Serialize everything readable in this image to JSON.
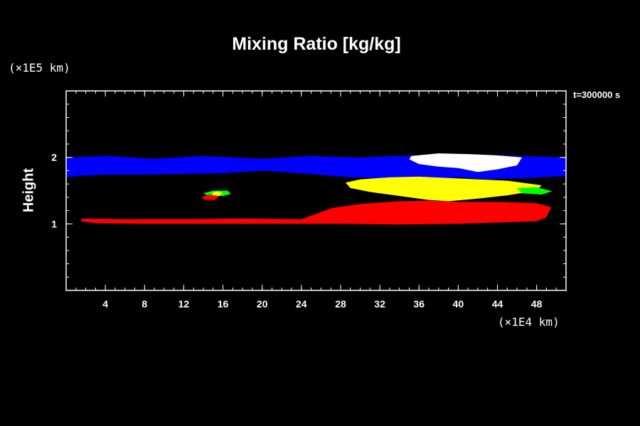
{
  "chart_data": {
    "type": "heatmap",
    "title": "Mixing Ratio [kg/kg]",
    "ylabel": "Height",
    "y_unit": "(×1E5 km)",
    "x_unit": "(×1E4 km)",
    "timestamp": "t=300000 s",
    "xlim": [
      0,
      51
    ],
    "ylim": [
      0,
      3
    ],
    "x_ticks": [
      "4",
      "8",
      "12",
      "16",
      "20",
      "24",
      "28",
      "32",
      "36",
      "40",
      "44",
      "48"
    ],
    "y_ticks": [
      "1",
      "2"
    ],
    "x_tick_values": [
      4,
      8,
      12,
      16,
      20,
      24,
      28,
      32,
      36,
      40,
      44,
      48
    ],
    "y_tick_values": [
      1,
      2
    ],
    "x_minor_step": 1,
    "y_minor_step": 0.2,
    "background": "#000000",
    "regions": [
      {
        "color": "#0000ff",
        "points": [
          [
            0,
            2.0
          ],
          [
            4,
            2.02
          ],
          [
            9,
            1.98
          ],
          [
            14,
            2.02
          ],
          [
            20,
            1.98
          ],
          [
            25,
            2.02
          ],
          [
            30,
            2.0
          ],
          [
            35,
            2.03
          ],
          [
            40,
            2.05
          ],
          [
            45,
            2.03
          ],
          [
            51,
            2.0
          ],
          [
            51,
            1.72
          ],
          [
            47,
            1.69
          ],
          [
            43,
            1.67
          ],
          [
            40,
            1.7
          ],
          [
            36,
            1.64
          ],
          [
            32,
            1.68
          ],
          [
            28,
            1.71
          ],
          [
            24,
            1.76
          ],
          [
            20,
            1.8
          ],
          [
            16,
            1.76
          ],
          [
            12,
            1.75
          ],
          [
            8,
            1.74
          ],
          [
            4,
            1.74
          ],
          [
            1,
            1.72
          ],
          [
            0,
            1.7
          ]
        ]
      },
      {
        "color": "#ffffff",
        "points": [
          [
            35.2,
            2.02
          ],
          [
            38,
            2.06
          ],
          [
            41,
            2.05
          ],
          [
            44,
            2.03
          ],
          [
            46.5,
            2.0
          ],
          [
            46,
            1.88
          ],
          [
            44,
            1.82
          ],
          [
            42,
            1.78
          ],
          [
            40,
            1.84
          ],
          [
            38,
            1.86
          ],
          [
            36,
            1.9
          ],
          [
            35,
            1.97
          ]
        ]
      },
      {
        "color": "#ffff00",
        "points": [
          [
            28.5,
            1.62
          ],
          [
            30,
            1.67
          ],
          [
            33,
            1.7
          ],
          [
            36,
            1.71
          ],
          [
            39,
            1.69
          ],
          [
            42,
            1.67
          ],
          [
            45,
            1.65
          ],
          [
            48.5,
            1.58
          ],
          [
            48,
            1.5
          ],
          [
            45,
            1.43
          ],
          [
            42,
            1.38
          ],
          [
            39,
            1.34
          ],
          [
            37,
            1.36
          ],
          [
            34,
            1.42
          ],
          [
            31,
            1.48
          ],
          [
            29,
            1.54
          ]
        ]
      },
      {
        "color": "#00ff00",
        "points": [
          [
            46,
            1.54
          ],
          [
            48,
            1.55
          ],
          [
            49.6,
            1.49
          ],
          [
            48.5,
            1.44
          ],
          [
            46.5,
            1.46
          ]
        ]
      },
      {
        "color": "#ff0000",
        "points": [
          [
            1.5,
            1.04
          ],
          [
            1.6,
            1.08
          ],
          [
            6,
            1.07
          ],
          [
            12,
            1.07
          ],
          [
            18,
            1.08
          ],
          [
            24,
            1.07
          ],
          [
            27.2,
            1.24
          ],
          [
            30,
            1.3
          ],
          [
            34,
            1.34
          ],
          [
            37,
            1.35
          ],
          [
            40,
            1.33
          ],
          [
            44,
            1.33
          ],
          [
            48,
            1.31
          ],
          [
            49.5,
            1.25
          ],
          [
            49,
            1.1
          ],
          [
            48,
            1.04
          ],
          [
            40,
            1.0
          ],
          [
            34,
            0.99
          ],
          [
            28,
            1.0
          ],
          [
            20,
            1.0
          ],
          [
            14,
            1.0
          ],
          [
            8,
            1.0
          ],
          [
            3,
            1.01
          ]
        ]
      },
      {
        "color": "#00ff00",
        "points": [
          [
            14,
            1.46
          ],
          [
            15,
            1.5
          ],
          [
            16.5,
            1.5
          ],
          [
            16.8,
            1.45
          ],
          [
            16,
            1.42
          ],
          [
            14.5,
            1.42
          ]
        ]
      },
      {
        "color": "#ffff00",
        "points": [
          [
            14.9,
            1.47
          ],
          [
            15.5,
            1.49
          ],
          [
            16,
            1.46
          ],
          [
            15.6,
            1.42
          ],
          [
            15,
            1.43
          ]
        ]
      },
      {
        "color": "#ff0000",
        "points": [
          [
            13.8,
            1.4
          ],
          [
            14.5,
            1.44
          ],
          [
            15.6,
            1.42
          ],
          [
            15.2,
            1.36
          ],
          [
            14.2,
            1.36
          ]
        ]
      }
    ]
  }
}
